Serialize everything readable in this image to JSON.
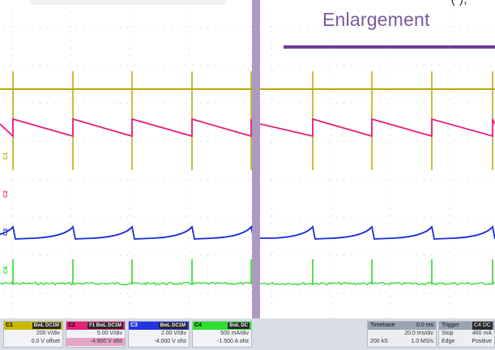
{
  "header": {
    "cutoff_text": "(       ),",
    "enlargement_title": "Enlargement"
  },
  "colors": {
    "c1": "#b8a800",
    "c2": "#e8207a",
    "c3": "#1a2ad6",
    "c4": "#1ed41e",
    "accent": "#6e3e97",
    "divider": "#ae9ac0"
  },
  "channel_tags": {
    "c1": "C1",
    "c2": "C2",
    "c3": "C3",
    "c4": "C4"
  },
  "channels": [
    {
      "id": "C1",
      "badge": "BwL DC1M",
      "scale": "200 V/div",
      "offset": "0.0 V offset"
    },
    {
      "id": "C2",
      "badge": "F1 BwL DC1M",
      "scale": "5.00 V/div",
      "offset": "-4.900 V ofst"
    },
    {
      "id": "C3",
      "badge": "BwL DC1M",
      "scale": "2.00 V/div",
      "offset": "-4.000 V ofst"
    },
    {
      "id": "C4",
      "badge": "BwL DC",
      "scale": "500 mA/div",
      "offset": "-1.500 A ofst"
    }
  ],
  "timebase": {
    "label": "Timebase",
    "delay": "0.0 ms",
    "scale": "20.0 ms/div",
    "samples": "200 kS",
    "rate": "1.0 MS/s"
  },
  "trigger": {
    "label": "Trigger",
    "channel": "C4 DC",
    "mode": "Stop",
    "level": "460 mA",
    "type": "Edge",
    "slope": "Positive"
  }
}
